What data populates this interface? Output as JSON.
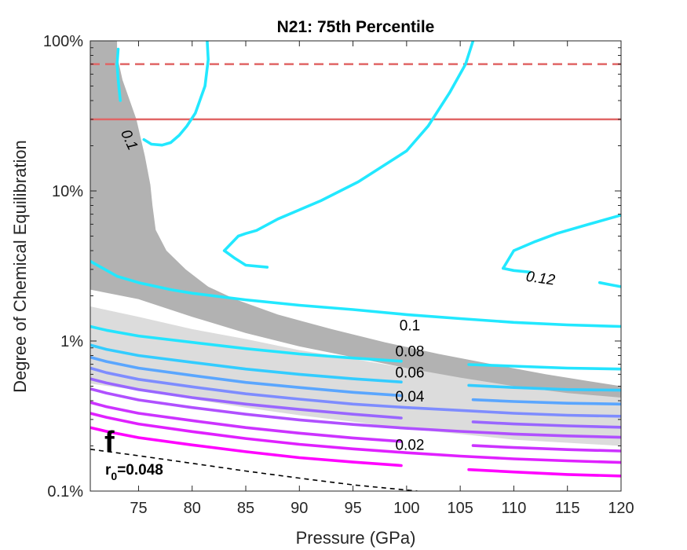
{
  "chart_data": {
    "type": "line",
    "title": "N21: 75th Percentile",
    "xlabel": "Pressure (GPa)",
    "ylabel": "Degree of Chemical Equilibration",
    "xlim": [
      70.5,
      120
    ],
    "ylim": [
      0.1,
      100
    ],
    "yscale": "log",
    "grid": false,
    "xticks": [
      75,
      80,
      85,
      90,
      95,
      100,
      105,
      110,
      115,
      120
    ],
    "xtick_labels": [
      "75",
      "80",
      "85",
      "90",
      "95",
      "100",
      "105",
      "110",
      "115",
      "120"
    ],
    "yticks": [
      0.1,
      1,
      10,
      100
    ],
    "ytick_labels": [
      "0.1%",
      "1%",
      "10%",
      "100%"
    ],
    "panel_label": "f",
    "annotation": {
      "base": "r",
      "subscript": "0",
      "rest": "=0.048"
    },
    "contour_labels": [
      {
        "text": "0.1",
        "x": 74.2,
        "y": 22,
        "rotate": 65,
        "italic": true
      },
      {
        "text": "0.12",
        "x": 112.5,
        "y": 2.65,
        "rotate": 8,
        "italic": true
      },
      {
        "text": "0.1",
        "x": 100.3,
        "y": 1.28,
        "rotate": 0,
        "italic": false
      },
      {
        "text": "0.08",
        "x": 100.3,
        "y": 0.86,
        "rotate": 0,
        "italic": false
      },
      {
        "text": "0.06",
        "x": 100.3,
        "y": 0.62,
        "rotate": 0,
        "italic": false
      },
      {
        "text": "0.04",
        "x": 100.3,
        "y": 0.43,
        "rotate": 0,
        "italic": false
      },
      {
        "text": "0.02",
        "x": 100.3,
        "y": 0.205,
        "rotate": 0,
        "italic": false
      }
    ],
    "reference_lines": [
      {
        "y": 70,
        "style": "dashed",
        "color": "#e06666"
      },
      {
        "y": 30,
        "style": "solid",
        "color": "#e06666"
      }
    ],
    "dashed_curve": {
      "color": "#000000",
      "x": [
        70.5,
        75,
        80,
        85,
        90,
        95,
        101
      ],
      "y": [
        0.19,
        0.172,
        0.153,
        0.136,
        0.122,
        0.11,
        0.1
      ]
    },
    "bands": [
      {
        "name": "dark",
        "color": "#b2b2b2",
        "x": [
          73,
          73,
          73.5,
          74.8,
          75.6,
          76.1,
          76.3,
          76.6,
          77.6,
          79.4,
          81.5,
          84,
          88,
          93,
          98,
          103,
          108,
          113,
          117,
          120,
          120,
          115,
          110,
          105,
          100,
          95,
          90,
          85,
          80,
          75,
          70.5,
          70.5
        ],
        "y": [
          100,
          80,
          55,
          30,
          17,
          11,
          8,
          5.5,
          4.0,
          3.0,
          2.3,
          1.9,
          1.5,
          1.2,
          0.98,
          0.82,
          0.7,
          0.6,
          0.54,
          0.5,
          0.42,
          0.45,
          0.5,
          0.57,
          0.66,
          0.78,
          0.92,
          1.13,
          1.45,
          1.9,
          2.2,
          100
        ]
      },
      {
        "name": "light",
        "color": "#dcdcdc",
        "x": [
          70.5,
          75,
          80,
          85,
          90,
          95,
          100,
          105,
          110,
          115,
          120,
          120,
          115,
          110,
          105,
          100,
          95,
          90,
          85,
          80,
          75,
          70.5
        ],
        "y": [
          1.7,
          1.45,
          1.2,
          1.03,
          0.87,
          0.76,
          0.66,
          0.58,
          0.52,
          0.47,
          0.43,
          0.2,
          0.21,
          0.22,
          0.24,
          0.26,
          0.29,
          0.32,
          0.36,
          0.41,
          0.47,
          0.52
        ]
      }
    ],
    "series": [
      {
        "color": "#24e4ff",
        "x": [
          70.5,
          72,
          75,
          80,
          85,
          90,
          95,
          100,
          105,
          110,
          115,
          120
        ],
        "y": [
          1.25,
          1.18,
          1.08,
          0.98,
          0.89,
          0.82,
          0.77,
          0.73,
          0.7,
          0.68,
          0.66,
          0.65
        ],
        "gap": [
          99.5,
          105.8
        ]
      },
      {
        "color": "#33ccff",
        "x": [
          70.5,
          72,
          75,
          80,
          85,
          90,
          95,
          100,
          105,
          110,
          115,
          120
        ],
        "y": [
          0.94,
          0.88,
          0.8,
          0.72,
          0.65,
          0.6,
          0.56,
          0.53,
          0.51,
          0.49,
          0.475,
          0.47
        ],
        "gap": [
          99.5,
          105.8
        ]
      },
      {
        "color": "#5aa6ff",
        "x": [
          70.5,
          72,
          75,
          80,
          85,
          90,
          95,
          100,
          105,
          110,
          115,
          120
        ],
        "y": [
          0.78,
          0.73,
          0.66,
          0.59,
          0.53,
          0.49,
          0.455,
          0.43,
          0.41,
          0.395,
          0.385,
          0.38
        ],
        "gap": [
          99.5,
          106.2
        ]
      },
      {
        "color": "#7e8cff",
        "x": [
          70.5,
          72,
          75,
          80,
          85,
          90,
          95,
          100,
          105,
          110,
          115,
          120
        ],
        "y": [
          0.66,
          0.615,
          0.555,
          0.495,
          0.445,
          0.41,
          0.38,
          0.36,
          0.345,
          0.33,
          0.32,
          0.315
        ]
      },
      {
        "color": "#9966ff",
        "x": [
          70.5,
          72,
          75,
          80,
          85,
          90,
          95,
          100,
          105,
          110,
          115,
          120
        ],
        "y": [
          0.56,
          0.525,
          0.475,
          0.42,
          0.38,
          0.35,
          0.325,
          0.305,
          0.292,
          0.28,
          0.272,
          0.266
        ],
        "gap": [
          99.5,
          106.2
        ]
      },
      {
        "color": "#b050ff",
        "x": [
          70.5,
          72,
          75,
          80,
          85,
          90,
          95,
          100,
          105,
          110,
          115,
          120
        ],
        "y": [
          0.48,
          0.45,
          0.405,
          0.36,
          0.325,
          0.298,
          0.278,
          0.262,
          0.25,
          0.24,
          0.233,
          0.228
        ]
      },
      {
        "color": "#cc33ff",
        "x": [
          70.5,
          72,
          75,
          80,
          85,
          90,
          95,
          100,
          105,
          110,
          115,
          120
        ],
        "y": [
          0.39,
          0.365,
          0.33,
          0.295,
          0.265,
          0.243,
          0.226,
          0.213,
          0.203,
          0.195,
          0.189,
          0.185
        ],
        "gap": [
          99.5,
          106.2
        ]
      },
      {
        "color": "#e020ff",
        "x": [
          70.5,
          72,
          75,
          80,
          85,
          90,
          95,
          100,
          105,
          110,
          115,
          120
        ],
        "y": [
          0.33,
          0.31,
          0.28,
          0.249,
          0.224,
          0.205,
          0.191,
          0.18,
          0.171,
          0.164,
          0.159,
          0.155
        ]
      },
      {
        "color": "#ff00ff",
        "x": [
          70.5,
          72,
          75,
          80,
          85,
          90,
          95,
          100,
          105,
          110,
          115,
          120
        ],
        "y": [
          0.265,
          0.25,
          0.227,
          0.203,
          0.183,
          0.167,
          0.156,
          0.147,
          0.14,
          0.134,
          0.129,
          0.126
        ],
        "gap": [
          99.5,
          105.8
        ]
      },
      {
        "color": "#22e8ff",
        "x": [
          70.5,
          73,
          75,
          78,
          80,
          85,
          90,
          95,
          100,
          105,
          110,
          115,
          120
        ],
        "y": [
          3.4,
          2.7,
          2.45,
          2.2,
          2.08,
          1.88,
          1.73,
          1.62,
          1.5,
          1.41,
          1.33,
          1.28,
          1.25
        ]
      },
      {
        "color": "#22e8ff",
        "x": [
          83,
          84.3,
          85,
          86,
          88,
          92,
          95.5,
          100,
          102,
          104,
          105.5,
          106.2
        ],
        "y": [
          4.0,
          5.0,
          5.2,
          5.45,
          6.5,
          8.6,
          11.5,
          18.5,
          27,
          45,
          70,
          100
        ]
      },
      {
        "color": "#22e8ff",
        "x": [
          83,
          84,
          85,
          87
        ],
        "y": [
          4.0,
          3.55,
          3.2,
          3.1
        ]
      },
      {
        "color": "#22e8ff",
        "x": [
          81.4,
          81.5,
          81.2,
          80.3,
          79.5,
          78.8,
          78,
          77.2,
          76.2,
          75.5
        ],
        "y": [
          100,
          75,
          50,
          33,
          27,
          23.5,
          21,
          20.2,
          20.5,
          22
        ]
      },
      {
        "color": "#22e8ff",
        "x": [
          73.3,
          73.1,
          73.0,
          73.1
        ],
        "y": [
          40,
          55,
          70,
          88
        ]
      },
      {
        "color": "#22e8ff",
        "x": [
          109,
          110,
          112,
          114,
          117,
          120
        ],
        "y": [
          3.05,
          4.0,
          4.6,
          5.2,
          6.0,
          6.9
        ]
      },
      {
        "color": "#22e8ff",
        "x": [
          109,
          110,
          111.5
        ],
        "y": [
          3.05,
          2.95,
          2.88
        ]
      },
      {
        "color": "#22e8ff",
        "x": [
          118,
          119,
          120
        ],
        "y": [
          2.45,
          2.37,
          2.3
        ]
      }
    ]
  }
}
